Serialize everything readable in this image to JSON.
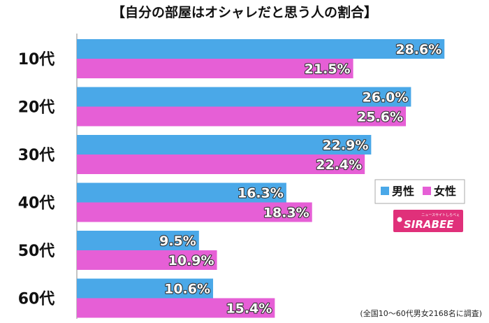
{
  "chart_data": {
    "type": "bar",
    "orientation": "horizontal",
    "title": "【自分の部屋はオシャレだと思う人の割合】",
    "categories": [
      "10代",
      "20代",
      "30代",
      "40代",
      "50代",
      "60代"
    ],
    "series": [
      {
        "name": "男性",
        "color": "#4aa8e8",
        "values": [
          28.6,
          26.0,
          22.9,
          16.3,
          9.5,
          10.6
        ]
      },
      {
        "name": "女性",
        "color": "#e65fd6",
        "values": [
          21.5,
          25.6,
          22.4,
          18.3,
          10.9,
          15.4
        ]
      }
    ],
    "value_suffix": "%",
    "xlim": [
      0,
      30
    ],
    "grid": false,
    "legend_position": "right",
    "footnote": "(全国10〜60代男女2168名に調査)"
  },
  "logo": {
    "text": "SIRABEE",
    "subtext": "ニュースサイトしらべぇ",
    "color": "#e0307a"
  }
}
